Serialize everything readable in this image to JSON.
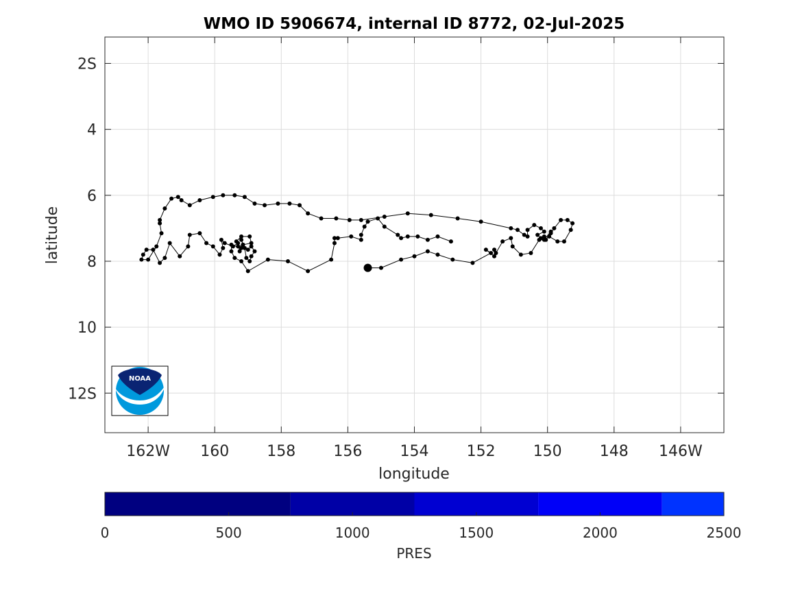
{
  "chart_data": {
    "type": "line",
    "title": "WMO ID 5906674, internal ID 8772, 02-Jul-2025",
    "xlabel": "longitude",
    "ylabel": "latitude",
    "xlim": [
      -163.3,
      -144.7
    ],
    "ylim": [
      -13.2,
      -1.2
    ],
    "y_reversed": true,
    "grid": true,
    "x_ticks": [
      {
        "value": -162,
        "label": "162W"
      },
      {
        "value": -160,
        "label": "160"
      },
      {
        "value": -158,
        "label": "158"
      },
      {
        "value": -156,
        "label": "156"
      },
      {
        "value": -154,
        "label": "154"
      },
      {
        "value": -152,
        "label": "152"
      },
      {
        "value": -150,
        "label": "150"
      },
      {
        "value": -148,
        "label": "148"
      },
      {
        "value": -146,
        "label": "146W"
      }
    ],
    "y_ticks": [
      {
        "value": -2,
        "label": "2S"
      },
      {
        "value": -4,
        "label": "4"
      },
      {
        "value": -6,
        "label": "6"
      },
      {
        "value": -8,
        "label": "8"
      },
      {
        "value": -10,
        "label": "10"
      },
      {
        "value": -12,
        "label": "12S"
      }
    ],
    "series": [
      {
        "marker_color": "#000000",
        "line_color": "#000000",
        "points": [
          [
            -152.9,
            -7.4
          ],
          [
            -153.3,
            -7.25
          ],
          [
            -153.6,
            -7.35
          ],
          [
            -153.9,
            -7.25
          ],
          [
            -154.2,
            -7.25
          ],
          [
            -154.4,
            -7.3
          ],
          [
            -154.5,
            -7.2
          ],
          [
            -154.9,
            -6.95
          ],
          [
            -155.1,
            -6.7
          ],
          [
            -155.4,
            -6.8
          ],
          [
            -155.5,
            -6.95
          ],
          [
            -155.6,
            -7.2
          ],
          [
            -155.6,
            -7.35
          ],
          [
            -155.9,
            -7.25
          ],
          [
            -156.3,
            -7.3
          ],
          [
            -156.4,
            -7.3
          ],
          [
            -156.4,
            -7.45
          ],
          [
            -156.5,
            -7.95
          ],
          [
            -157.2,
            -8.3
          ],
          [
            -157.8,
            -8.0
          ],
          [
            -158.4,
            -7.95
          ],
          [
            -159.0,
            -8.3
          ],
          [
            -159.2,
            -8.0
          ],
          [
            -159.4,
            -7.9
          ],
          [
            -159.5,
            -7.7
          ],
          [
            -159.5,
            -7.5
          ],
          [
            -159.2,
            -7.6
          ],
          [
            -159.0,
            -7.65
          ],
          [
            -158.9,
            -7.55
          ],
          [
            -158.8,
            -7.7
          ],
          [
            -158.9,
            -7.85
          ],
          [
            -158.95,
            -8.0
          ],
          [
            -159.05,
            -7.9
          ],
          [
            -159.1,
            -7.6
          ],
          [
            -159.2,
            -7.35
          ],
          [
            -159.15,
            -7.5
          ],
          [
            -159.3,
            -7.55
          ],
          [
            -159.35,
            -7.4
          ],
          [
            -159.2,
            -7.25
          ],
          [
            -158.95,
            -7.25
          ],
          [
            -158.9,
            -7.45
          ],
          [
            -159.15,
            -7.5
          ],
          [
            -159.25,
            -7.7
          ],
          [
            -159.3,
            -7.45
          ],
          [
            -159.45,
            -7.55
          ],
          [
            -159.7,
            -7.45
          ],
          [
            -159.8,
            -7.35
          ],
          [
            -159.75,
            -7.6
          ],
          [
            -159.85,
            -7.8
          ],
          [
            -160.05,
            -7.55
          ],
          [
            -160.25,
            -7.45
          ],
          [
            -160.45,
            -7.15
          ],
          [
            -160.75,
            -7.2
          ],
          [
            -160.8,
            -7.55
          ],
          [
            -161.05,
            -7.85
          ],
          [
            -161.35,
            -7.45
          ],
          [
            -161.5,
            -7.9
          ],
          [
            -161.65,
            -8.05
          ],
          [
            -161.85,
            -7.65
          ],
          [
            -162.05,
            -7.65
          ],
          [
            -162.15,
            -7.8
          ],
          [
            -162.2,
            -7.95
          ],
          [
            -162.0,
            -7.95
          ],
          [
            -161.75,
            -7.55
          ],
          [
            -161.6,
            -7.15
          ],
          [
            -161.65,
            -6.85
          ],
          [
            -161.65,
            -6.75
          ],
          [
            -161.5,
            -6.4
          ],
          [
            -161.3,
            -6.1
          ],
          [
            -161.1,
            -6.05
          ],
          [
            -161.0,
            -6.15
          ],
          [
            -160.75,
            -6.3
          ],
          [
            -160.45,
            -6.15
          ],
          [
            -160.05,
            -6.05
          ],
          [
            -159.75,
            -6.0
          ],
          [
            -159.4,
            -6.0
          ],
          [
            -159.1,
            -6.05
          ],
          [
            -158.8,
            -6.25
          ],
          [
            -158.5,
            -6.3
          ],
          [
            -158.1,
            -6.25
          ],
          [
            -157.75,
            -6.25
          ],
          [
            -157.45,
            -6.3
          ],
          [
            -157.2,
            -6.55
          ],
          [
            -156.8,
            -6.7
          ],
          [
            -156.35,
            -6.7
          ],
          [
            -155.95,
            -6.75
          ],
          [
            -155.6,
            -6.75
          ],
          [
            -154.9,
            -6.65
          ],
          [
            -154.2,
            -6.55
          ],
          [
            -153.5,
            -6.6
          ],
          [
            -152.7,
            -6.7
          ],
          [
            -152.0,
            -6.8
          ],
          [
            -151.1,
            -7.0
          ],
          [
            -150.9,
            -7.05
          ],
          [
            -150.7,
            -7.2
          ],
          [
            -150.6,
            -7.25
          ],
          [
            -150.6,
            -7.05
          ],
          [
            -150.4,
            -6.9
          ],
          [
            -150.2,
            -7.0
          ],
          [
            -150.1,
            -7.1
          ],
          [
            -150.3,
            -7.2
          ],
          [
            -150.2,
            -7.3
          ],
          [
            -150.1,
            -7.25
          ],
          [
            -150.05,
            -7.35
          ],
          [
            -149.9,
            -7.15
          ],
          [
            -149.8,
            -7.0
          ],
          [
            -149.6,
            -6.75
          ],
          [
            -149.4,
            -6.75
          ],
          [
            -149.25,
            -6.85
          ],
          [
            -149.3,
            -7.05
          ],
          [
            -149.5,
            -7.4
          ],
          [
            -149.7,
            -7.4
          ],
          [
            -149.95,
            -7.25
          ],
          [
            -149.9,
            -7.1
          ],
          [
            -150.1,
            -7.35
          ],
          [
            -150.25,
            -7.35
          ],
          [
            -150.5,
            -7.75
          ],
          [
            -150.8,
            -7.8
          ],
          [
            -151.05,
            -7.55
          ],
          [
            -151.1,
            -7.3
          ],
          [
            -151.35,
            -7.4
          ],
          [
            -151.55,
            -7.75
          ],
          [
            -151.6,
            -7.65
          ],
          [
            -151.6,
            -7.85
          ],
          [
            -151.85,
            -7.65
          ],
          [
            -151.7,
            -7.75
          ],
          [
            -152.25,
            -8.05
          ],
          [
            -152.85,
            -7.95
          ],
          [
            -153.3,
            -7.8
          ],
          [
            -153.6,
            -7.7
          ],
          [
            -154.0,
            -7.85
          ],
          [
            -154.4,
            -7.95
          ],
          [
            -155.0,
            -8.2
          ],
          [
            -155.4,
            -8.2
          ]
        ],
        "start_marker": [
          -152.9,
          -7.4
        ],
        "end_marker": [
          -155.4,
          -8.2
        ]
      }
    ],
    "colorbar": {
      "label": "PRES",
      "range": [
        0,
        2500
      ],
      "ticks": [
        {
          "value": 0,
          "label": "0"
        },
        {
          "value": 500,
          "label": "500"
        },
        {
          "value": 1000,
          "label": "1000"
        },
        {
          "value": 1500,
          "label": "1500"
        },
        {
          "value": 2000,
          "label": "2000"
        },
        {
          "value": 2500,
          "label": "2500"
        }
      ],
      "segments": [
        {
          "from": 0,
          "to": 750,
          "color": "#000080"
        },
        {
          "from": 750,
          "to": 1250,
          "color": "#0000A6"
        },
        {
          "from": 1250,
          "to": 1750,
          "color": "#0000D2"
        },
        {
          "from": 1750,
          "to": 2250,
          "color": "#0000F8"
        },
        {
          "from": 2250,
          "to": 2500,
          "color": "#0033FF"
        }
      ]
    }
  },
  "logo": {
    "name": "noaa-logo",
    "text": "NOAA",
    "colors": {
      "navy": "#0A2473",
      "sky": "#0099DD",
      "white": "#FFFFFF"
    }
  }
}
